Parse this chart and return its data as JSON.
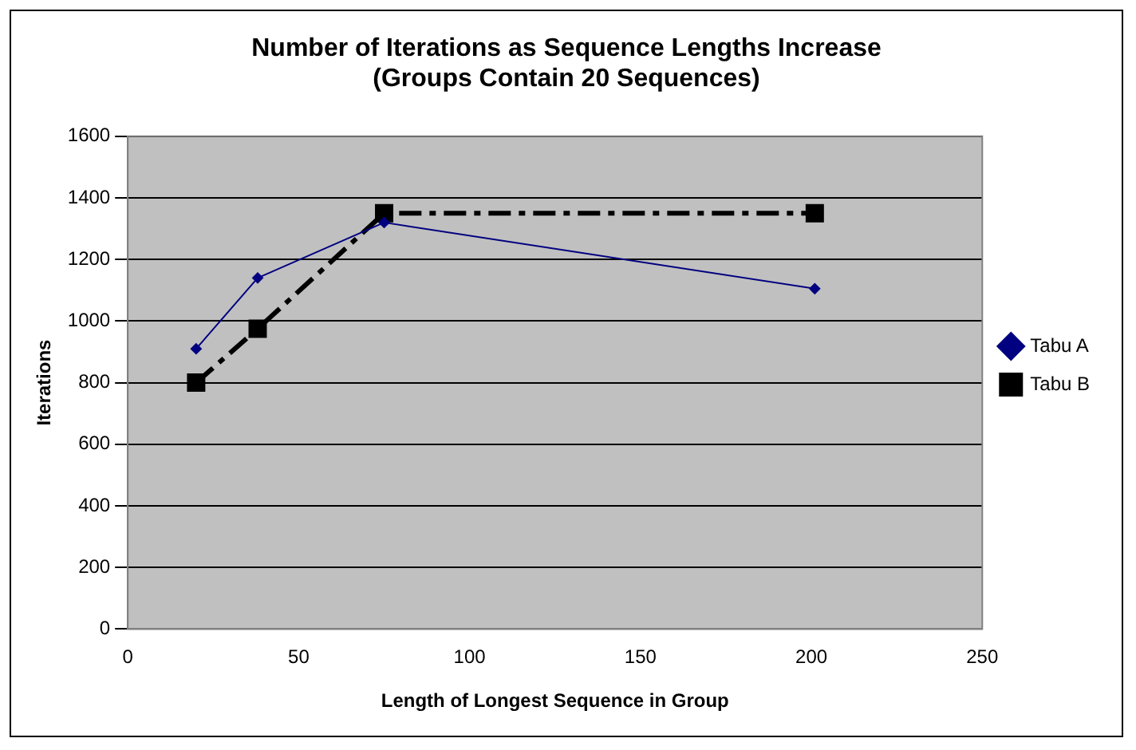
{
  "chart_data": {
    "type": "line",
    "title": "Number of Iterations as Sequence Lengths Increase\n(Groups Contain 20 Sequences)",
    "xlabel": "Length of Longest Sequence in Group",
    "ylabel": "Iterations",
    "xlim": [
      0,
      250
    ],
    "xticks": [
      0,
      50,
      100,
      150,
      200,
      250
    ],
    "ylim": [
      0,
      1600
    ],
    "yticks": [
      0,
      200,
      400,
      600,
      800,
      1000,
      1200,
      1400,
      1600
    ],
    "grid": "y",
    "legend": "right",
    "series": [
      {
        "name": "Tabu A",
        "color": "#000080",
        "x": [
          20,
          38,
          75,
          201
        ],
        "values": [
          910,
          1140,
          1320,
          1105
        ],
        "marker": "diamond",
        "line_style": "solid"
      },
      {
        "name": "Tabu B",
        "color": "#000000",
        "x": [
          20,
          38,
          75,
          201
        ],
        "values": [
          800,
          975,
          1350,
          1350
        ],
        "marker": "square",
        "line_style": "dashed"
      }
    ]
  }
}
